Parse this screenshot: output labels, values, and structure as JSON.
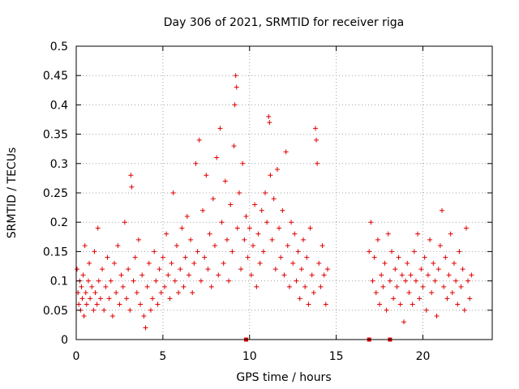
{
  "chart_data": {
    "type": "scatter",
    "title": "Day 306 of 2021, SRMTID for receiver riga",
    "xlabel": "GPS time / hours",
    "ylabel": "SRMTID / TECUs",
    "xlim": [
      0,
      24
    ],
    "ylim": [
      0,
      0.5
    ],
    "x_ticks": [
      0,
      5,
      10,
      15,
      20
    ],
    "x_tick_labels": [
      "0",
      "5",
      "10",
      "15",
      "20"
    ],
    "y_ticks": [
      0,
      0.05,
      0.1,
      0.15,
      0.2,
      0.25,
      0.3,
      0.35,
      0.4,
      0.45,
      0.5
    ],
    "y_tick_labels": [
      "0",
      "0.05",
      "0.1",
      "0.15",
      "0.2",
      "0.25",
      "0.3",
      "0.35",
      "0.4",
      "0.45",
      "0.5"
    ],
    "grid": true,
    "marker": "+",
    "marker_color": "#e00000",
    "series": [
      {
        "points": [
          [
            0.05,
            0.12
          ],
          [
            0.1,
            0.08
          ],
          [
            0.15,
            0.06
          ],
          [
            0.2,
            0.1
          ],
          [
            0.25,
            0.05
          ],
          [
            0.3,
            0.09
          ],
          [
            0.35,
            0.07
          ],
          [
            0.4,
            0.11
          ],
          [
            0.45,
            0.04
          ],
          [
            0.5,
            0.16
          ],
          [
            0.55,
            0.08
          ],
          [
            0.6,
            0.06
          ],
          [
            0.7,
            0.1
          ],
          [
            0.75,
            0.13
          ],
          [
            0.8,
            0.07
          ],
          [
            0.9,
            0.09
          ],
          [
            1.0,
            0.05
          ],
          [
            1.05,
            0.15
          ],
          [
            1.1,
            0.08
          ],
          [
            1.2,
            0.06
          ],
          [
            1.25,
            0.19
          ],
          [
            1.3,
            0.1
          ],
          [
            1.4,
            0.07
          ],
          [
            1.5,
            0.12
          ],
          [
            1.6,
            0.05
          ],
          [
            1.7,
            0.09
          ],
          [
            1.8,
            0.14
          ],
          [
            1.9,
            0.07
          ],
          [
            2.0,
            0.1
          ],
          [
            2.1,
            0.04
          ],
          [
            2.2,
            0.13
          ],
          [
            2.3,
            0.08
          ],
          [
            2.4,
            0.16
          ],
          [
            2.5,
            0.06
          ],
          [
            2.6,
            0.11
          ],
          [
            2.7,
            0.09
          ],
          [
            2.8,
            0.2
          ],
          [
            2.9,
            0.07
          ],
          [
            3.0,
            0.12
          ],
          [
            3.1,
            0.05
          ],
          [
            3.15,
            0.28
          ],
          [
            3.2,
            0.26
          ],
          [
            3.3,
            0.1
          ],
          [
            3.4,
            0.14
          ],
          [
            3.5,
            0.08
          ],
          [
            3.6,
            0.17
          ],
          [
            3.7,
            0.06
          ],
          [
            3.8,
            0.11
          ],
          [
            3.9,
            0.04
          ],
          [
            4.0,
            0.02
          ],
          [
            4.1,
            0.09
          ],
          [
            4.2,
            0.13
          ],
          [
            4.3,
            0.05
          ],
          [
            4.4,
            0.07
          ],
          [
            4.5,
            0.15
          ],
          [
            4.6,
            0.1
          ],
          [
            4.7,
            0.06
          ],
          [
            4.8,
            0.12
          ],
          [
            4.9,
            0.08
          ],
          [
            5.0,
            0.14
          ],
          [
            5.1,
            0.09
          ],
          [
            5.2,
            0.18
          ],
          [
            5.3,
            0.11
          ],
          [
            5.4,
            0.07
          ],
          [
            5.5,
            0.13
          ],
          [
            5.6,
            0.25
          ],
          [
            5.7,
            0.1
          ],
          [
            5.8,
            0.16
          ],
          [
            5.9,
            0.08
          ],
          [
            6.0,
            0.12
          ],
          [
            6.1,
            0.19
          ],
          [
            6.2,
            0.09
          ],
          [
            6.3,
            0.14
          ],
          [
            6.4,
            0.21
          ],
          [
            6.5,
            0.11
          ],
          [
            6.6,
            0.17
          ],
          [
            6.7,
            0.08
          ],
          [
            6.8,
            0.13
          ],
          [
            6.9,
            0.3
          ],
          [
            7.0,
            0.15
          ],
          [
            7.1,
            0.34
          ],
          [
            7.2,
            0.1
          ],
          [
            7.3,
            0.22
          ],
          [
            7.4,
            0.14
          ],
          [
            7.5,
            0.28
          ],
          [
            7.6,
            0.12
          ],
          [
            7.7,
            0.18
          ],
          [
            7.8,
            0.09
          ],
          [
            7.9,
            0.24
          ],
          [
            8.0,
            0.16
          ],
          [
            8.1,
            0.31
          ],
          [
            8.2,
            0.11
          ],
          [
            8.3,
            0.36
          ],
          [
            8.4,
            0.2
          ],
          [
            8.5,
            0.13
          ],
          [
            8.6,
            0.27
          ],
          [
            8.7,
            0.17
          ],
          [
            8.8,
            0.1
          ],
          [
            8.9,
            0.23
          ],
          [
            9.0,
            0.15
          ],
          [
            9.1,
            0.33
          ],
          [
            9.15,
            0.4
          ],
          [
            9.2,
            0.45
          ],
          [
            9.25,
            0.43
          ],
          [
            9.3,
            0.19
          ],
          [
            9.4,
            0.25
          ],
          [
            9.5,
            0.12
          ],
          [
            9.6,
            0.3
          ],
          [
            9.7,
            0.17
          ],
          [
            9.8,
            0.21
          ],
          [
            9.9,
            0.14
          ],
          [
            10.0,
            0.19
          ],
          [
            10.1,
            0.11
          ],
          [
            10.2,
            0.16
          ],
          [
            10.3,
            0.23
          ],
          [
            10.4,
            0.09
          ],
          [
            10.5,
            0.18
          ],
          [
            10.6,
            0.13
          ],
          [
            10.7,
            0.22
          ],
          [
            10.8,
            0.15
          ],
          [
            10.9,
            0.25
          ],
          [
            11.0,
            0.2
          ],
          [
            11.1,
            0.38
          ],
          [
            11.15,
            0.37
          ],
          [
            11.2,
            0.28
          ],
          [
            11.3,
            0.17
          ],
          [
            11.4,
            0.24
          ],
          [
            11.5,
            0.12
          ],
          [
            11.6,
            0.29
          ],
          [
            11.7,
            0.19
          ],
          [
            11.8,
            0.14
          ],
          [
            11.9,
            0.22
          ],
          [
            12.0,
            0.11
          ],
          [
            12.1,
            0.32
          ],
          [
            12.2,
            0.16
          ],
          [
            12.3,
            0.09
          ],
          [
            12.4,
            0.2
          ],
          [
            12.5,
            0.13
          ],
          [
            12.6,
            0.18
          ],
          [
            12.7,
            0.1
          ],
          [
            12.8,
            0.15
          ],
          [
            12.9,
            0.07
          ],
          [
            13.0,
            0.12
          ],
          [
            13.1,
            0.17
          ],
          [
            13.2,
            0.09
          ],
          [
            13.3,
            0.14
          ],
          [
            13.4,
            0.06
          ],
          [
            13.5,
            0.19
          ],
          [
            13.6,
            0.11
          ],
          [
            13.7,
            0.08
          ],
          [
            13.8,
            0.36
          ],
          [
            13.85,
            0.34
          ],
          [
            13.9,
            0.3
          ],
          [
            14.0,
            0.13
          ],
          [
            14.1,
            0.09
          ],
          [
            14.2,
            0.16
          ],
          [
            14.3,
            0.11
          ],
          [
            14.4,
            0.06
          ],
          [
            14.5,
            0.12
          ],
          [
            16.9,
            0.15
          ],
          [
            17.0,
            0.2
          ],
          [
            17.1,
            0.1
          ],
          [
            17.2,
            0.14
          ],
          [
            17.3,
            0.08
          ],
          [
            17.4,
            0.17
          ],
          [
            17.5,
            0.06
          ],
          [
            17.6,
            0.11
          ],
          [
            17.7,
            0.09
          ],
          [
            17.8,
            0.13
          ],
          [
            17.9,
            0.05
          ],
          [
            18.0,
            0.18
          ],
          [
            18.1,
            0.1
          ],
          [
            18.2,
            0.15
          ],
          [
            18.3,
            0.07
          ],
          [
            18.4,
            0.12
          ],
          [
            18.5,
            0.09
          ],
          [
            18.6,
            0.14
          ],
          [
            18.7,
            0.06
          ],
          [
            18.8,
            0.11
          ],
          [
            18.9,
            0.03
          ],
          [
            19.0,
            0.1
          ],
          [
            19.1,
            0.13
          ],
          [
            19.2,
            0.08
          ],
          [
            19.3,
            0.11
          ],
          [
            19.4,
            0.06
          ],
          [
            19.5,
            0.15
          ],
          [
            19.6,
            0.1
          ],
          [
            19.7,
            0.18
          ],
          [
            19.8,
            0.07
          ],
          [
            19.9,
            0.12
          ],
          [
            20.0,
            0.09
          ],
          [
            20.1,
            0.14
          ],
          [
            20.2,
            0.05
          ],
          [
            20.3,
            0.11
          ],
          [
            20.4,
            0.17
          ],
          [
            20.5,
            0.08
          ],
          [
            20.6,
            0.13
          ],
          [
            20.7,
            0.1
          ],
          [
            20.8,
            0.04
          ],
          [
            20.9,
            0.12
          ],
          [
            21.0,
            0.16
          ],
          [
            21.1,
            0.22
          ],
          [
            21.2,
            0.09
          ],
          [
            21.3,
            0.14
          ],
          [
            21.4,
            0.07
          ],
          [
            21.5,
            0.11
          ],
          [
            21.6,
            0.18
          ],
          [
            21.7,
            0.08
          ],
          [
            21.8,
            0.13
          ],
          [
            21.9,
            0.1
          ],
          [
            22.0,
            0.06
          ],
          [
            22.1,
            0.15
          ],
          [
            22.2,
            0.09
          ],
          [
            22.3,
            0.12
          ],
          [
            22.4,
            0.05
          ],
          [
            22.5,
            0.19
          ],
          [
            22.6,
            0.1
          ],
          [
            22.7,
            0.07
          ],
          [
            22.8,
            0.11
          ]
        ]
      }
    ],
    "zero_markers_x": [
      9.8,
      16.9,
      18.1
    ]
  }
}
